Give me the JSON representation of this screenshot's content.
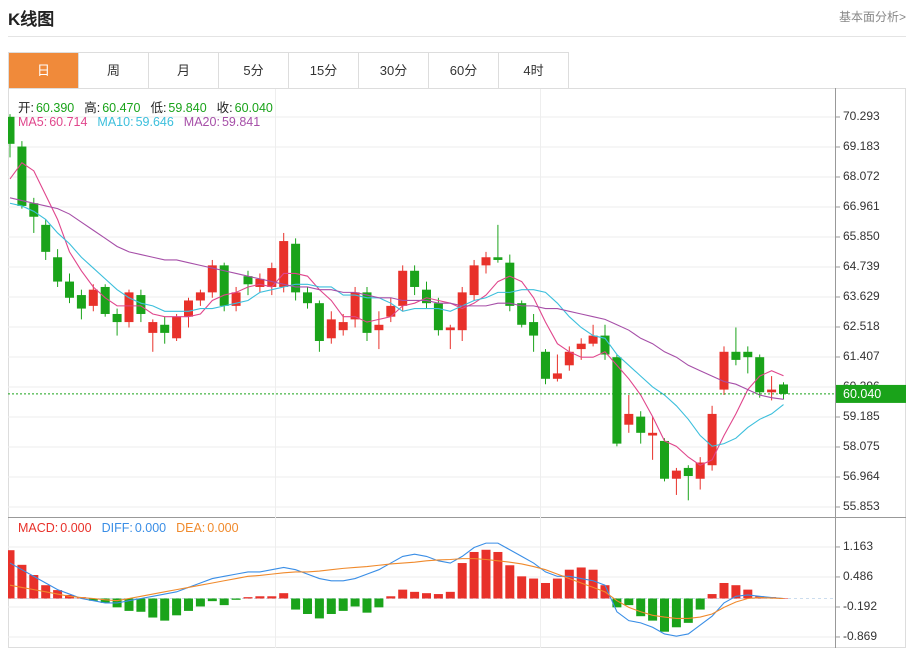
{
  "header": {
    "title": "K线图",
    "link": "基本面分析>"
  },
  "tabs": [
    "日",
    "周",
    "月",
    "5分",
    "15分",
    "30分",
    "60分",
    "4时"
  ],
  "active_tab": 0,
  "chart_data": [
    {
      "type": "candlestick",
      "info": [
        {
          "label": "开:",
          "value": "60.390"
        },
        {
          "label": "高:",
          "value": "60.470"
        },
        {
          "label": "低:",
          "value": "59.840"
        },
        {
          "label": "收:",
          "value": "60.040"
        }
      ],
      "up_color": "#e8312a",
      "down_color": "#1aa31a",
      "candles": {
        "open": [
          70.3,
          69.2,
          67.1,
          66.3,
          65.1,
          64.2,
          63.7,
          63.3,
          64.0,
          63.0,
          62.7,
          63.7,
          62.3,
          62.6,
          62.1,
          62.9,
          63.5,
          63.8,
          64.8,
          63.3,
          64.4,
          64.0,
          64.0,
          64.0,
          65.6,
          63.8,
          63.4,
          62.1,
          62.4,
          62.8,
          63.8,
          62.4,
          62.9,
          63.3,
          64.6,
          63.9,
          63.4,
          62.4,
          62.4,
          63.7,
          64.8,
          65.1,
          64.9,
          63.4,
          62.7,
          61.6,
          60.6,
          61.1,
          61.7,
          61.9,
          62.2,
          61.4,
          58.9,
          59.2,
          58.5,
          58.3,
          56.9,
          57.3,
          56.9,
          57.4,
          60.2,
          61.6,
          61.6,
          61.4,
          60.1,
          60.39
        ],
        "high": [
          70.4,
          69.4,
          67.3,
          66.5,
          65.4,
          64.5,
          63.9,
          64.1,
          64.1,
          63.2,
          63.9,
          63.9,
          62.8,
          62.9,
          63.0,
          63.6,
          63.9,
          65.0,
          64.9,
          64.0,
          64.6,
          64.5,
          64.9,
          66.0,
          65.8,
          64.0,
          63.5,
          63.1,
          63.0,
          64.0,
          64.0,
          63.1,
          63.6,
          64.8,
          64.8,
          64.2,
          63.6,
          62.6,
          64.0,
          65.0,
          65.3,
          66.3,
          65.2,
          63.5,
          63.0,
          61.7,
          61.5,
          61.8,
          62.1,
          62.6,
          62.6,
          61.5,
          60.0,
          59.4,
          59.2,
          58.4,
          57.3,
          57.4,
          57.7,
          59.6,
          61.8,
          62.5,
          61.8,
          61.5,
          60.7,
          60.47
        ],
        "low": [
          68.8,
          66.9,
          66.0,
          65.0,
          64.0,
          63.4,
          62.8,
          63.1,
          62.9,
          62.2,
          62.5,
          62.7,
          61.6,
          61.9,
          62.0,
          62.5,
          63.3,
          63.6,
          63.1,
          63.1,
          63.7,
          63.8,
          63.7,
          63.8,
          63.5,
          63.2,
          61.6,
          61.9,
          62.2,
          62.5,
          62.0,
          61.7,
          62.7,
          63.1,
          63.7,
          63.2,
          62.2,
          61.7,
          62.0,
          63.5,
          64.5,
          64.9,
          63.1,
          62.5,
          61.6,
          60.4,
          60.5,
          60.9,
          61.3,
          61.8,
          61.3,
          58.1,
          58.6,
          58.2,
          57.6,
          56.8,
          56.3,
          56.1,
          56.5,
          57.2,
          60.0,
          61.1,
          60.8,
          59.9,
          59.8,
          59.84
        ],
        "close": [
          69.3,
          67.0,
          66.6,
          65.3,
          64.2,
          63.6,
          63.2,
          63.9,
          63.0,
          62.7,
          63.8,
          63.0,
          62.7,
          62.3,
          62.9,
          63.5,
          63.8,
          64.8,
          63.3,
          63.8,
          64.1,
          64.3,
          64.7,
          65.7,
          63.8,
          63.4,
          62.0,
          62.8,
          62.7,
          63.8,
          62.3,
          62.6,
          63.3,
          64.6,
          64.0,
          63.4,
          62.4,
          62.5,
          63.8,
          64.8,
          65.1,
          65.0,
          63.3,
          62.6,
          62.2,
          60.6,
          60.8,
          61.6,
          61.9,
          62.2,
          61.5,
          58.2,
          59.3,
          58.6,
          58.6,
          56.9,
          57.2,
          57.0,
          57.5,
          59.3,
          61.6,
          61.3,
          61.4,
          60.1,
          60.2,
          60.04
        ]
      },
      "series": [
        {
          "name": "MA5:",
          "value_label": "60.714",
          "color": "#e0468c",
          "values": [
            68.0,
            68.6,
            68.3,
            67.4,
            66.5,
            65.3,
            64.6,
            64.0,
            63.6,
            63.3,
            63.3,
            63.3,
            63.0,
            62.9,
            62.9,
            62.9,
            63.0,
            63.5,
            63.7,
            63.8,
            64.0,
            64.1,
            64.0,
            64.5,
            64.5,
            64.4,
            63.9,
            63.5,
            62.9,
            62.9,
            62.7,
            62.8,
            62.9,
            63.3,
            63.4,
            63.6,
            63.5,
            63.4,
            63.2,
            63.4,
            63.7,
            64.2,
            64.4,
            64.2,
            63.6,
            62.7,
            61.9,
            61.6,
            61.4,
            61.4,
            61.6,
            61.1,
            60.6,
            60.0,
            59.2,
            58.3,
            58.1,
            57.7,
            57.4,
            57.6,
            58.5,
            59.3,
            60.2,
            60.7,
            60.9,
            60.714
          ]
        },
        {
          "name": "MA10:",
          "value_label": "59.646",
          "color": "#3cbfdc",
          "values": [
            67.1,
            67.0,
            66.8,
            66.5,
            66.0,
            65.6,
            65.1,
            64.7,
            64.3,
            63.9,
            63.6,
            63.4,
            63.3,
            63.1,
            63.1,
            63.1,
            63.2,
            63.2,
            63.3,
            63.4,
            63.5,
            63.8,
            63.9,
            64.0,
            64.1,
            64.1,
            64.0,
            64.0,
            63.7,
            63.7,
            63.6,
            63.6,
            63.4,
            63.1,
            63.2,
            63.2,
            63.2,
            63.1,
            63.3,
            63.5,
            63.6,
            63.8,
            63.8,
            63.9,
            63.9,
            63.8,
            63.4,
            62.9,
            62.5,
            62.2,
            62.1,
            61.5,
            61.1,
            60.7,
            60.3,
            60.0,
            59.6,
            59.1,
            58.5,
            58.1,
            58.2,
            58.4,
            58.8,
            59.1,
            59.3,
            59.646
          ]
        },
        {
          "name": "MA20:",
          "value_label": "59.841",
          "color": "#a64fa8",
          "values": [
            67.3,
            67.2,
            67.1,
            67.0,
            66.9,
            66.7,
            66.4,
            66.1,
            65.8,
            65.5,
            65.3,
            65.2,
            65.1,
            65.0,
            65.0,
            64.9,
            64.8,
            64.7,
            64.6,
            64.5,
            64.4,
            64.3,
            64.2,
            64.1,
            64.0,
            64.0,
            63.9,
            63.9,
            63.8,
            63.8,
            63.7,
            63.6,
            63.6,
            63.5,
            63.5,
            63.5,
            63.4,
            63.4,
            63.3,
            63.3,
            63.3,
            63.4,
            63.4,
            63.3,
            63.3,
            63.2,
            63.2,
            63.1,
            63.0,
            62.9,
            62.8,
            62.6,
            62.4,
            62.1,
            61.9,
            61.6,
            61.4,
            61.1,
            60.9,
            60.7,
            60.5,
            60.4,
            60.2,
            60.0,
            59.9,
            59.841
          ]
        }
      ],
      "last_price": {
        "value": 60.04,
        "label": "60.040",
        "color": "#1aa31a"
      },
      "ylim": [
        55.557,
        71.293
      ],
      "yticks": [
        70.293,
        69.183,
        68.072,
        66.961,
        {
          "value": 65.85,
          "label": "65.850"
        },
        64.739,
        63.629,
        62.518,
        61.407,
        60.296,
        59.185,
        58.075,
        56.964,
        55.853
      ],
      "grid": true
    },
    {
      "type": "macd",
      "bars": {
        "name": "MACD:",
        "value_label": "0.000",
        "color": "#e8312a",
        "negative_color": "#1aa31a",
        "values": [
          1.09,
          0.76,
          0.53,
          0.3,
          0.19,
          0.08,
          0.03,
          -0.05,
          -0.1,
          -0.2,
          -0.28,
          -0.3,
          -0.43,
          -0.5,
          -0.38,
          -0.28,
          -0.18,
          -0.06,
          -0.15,
          -0.03,
          0.03,
          0.05,
          0.05,
          0.12,
          -0.25,
          -0.35,
          -0.45,
          -0.35,
          -0.28,
          -0.18,
          -0.32,
          -0.2,
          0.05,
          0.2,
          0.15,
          0.12,
          0.1,
          0.15,
          0.8,
          1.05,
          1.1,
          1.05,
          0.75,
          0.5,
          0.45,
          0.35,
          0.45,
          0.65,
          0.7,
          0.65,
          0.3,
          -0.2,
          -0.15,
          -0.4,
          -0.5,
          -0.75,
          -0.65,
          -0.55,
          -0.25,
          0.1,
          0.35,
          0.3,
          0.2,
          0.05,
          0.03,
          0.0
        ]
      },
      "series": [
        {
          "name": "DIFF:",
          "value_label": "0.000",
          "color": "#3a8ee6",
          "values": [
            0.8,
            0.65,
            0.5,
            0.35,
            0.2,
            0.1,
            0.0,
            -0.05,
            -0.1,
            -0.1,
            -0.05,
            0.0,
            0.05,
            0.1,
            0.15,
            0.25,
            0.35,
            0.45,
            0.5,
            0.55,
            0.6,
            0.6,
            0.65,
            0.7,
            0.65,
            0.55,
            0.45,
            0.4,
            0.4,
            0.45,
            0.55,
            0.65,
            0.8,
            0.95,
            1.0,
            0.95,
            0.85,
            0.8,
            0.95,
            1.15,
            1.25,
            1.25,
            1.1,
            0.95,
            0.8,
            0.6,
            0.5,
            0.5,
            0.45,
            0.4,
            0.3,
            -0.3,
            -0.5,
            -0.55,
            -0.65,
            -0.8,
            -0.85,
            -0.8,
            -0.6,
            -0.4,
            -0.1,
            0.05,
            0.08,
            0.05,
            0.02,
            0.0
          ]
        },
        {
          "name": "DEA:",
          "value_label": "0.000",
          "color": "#f08a2c",
          "values": [
            0.3,
            0.25,
            0.2,
            0.15,
            0.1,
            0.05,
            0.02,
            0.0,
            -0.03,
            -0.05,
            0.0,
            0.05,
            0.1,
            0.15,
            0.2,
            0.25,
            0.3,
            0.35,
            0.4,
            0.45,
            0.5,
            0.52,
            0.55,
            0.58,
            0.6,
            0.6,
            0.62,
            0.65,
            0.68,
            0.7,
            0.72,
            0.75,
            0.78,
            0.8,
            0.82,
            0.85,
            0.87,
            0.88,
            0.9,
            0.9,
            0.88,
            0.85,
            0.82,
            0.78,
            0.72,
            0.65,
            0.55,
            0.45,
            0.35,
            0.25,
            0.15,
            -0.05,
            -0.2,
            -0.3,
            -0.38,
            -0.42,
            -0.45,
            -0.45,
            -0.42,
            -0.35,
            -0.2,
            -0.08,
            0.0,
            0.02,
            0.01,
            0.0
          ]
        }
      ],
      "ylim": [
        -1.05,
        1.817
      ],
      "yticks": [
        1.163,
        0.486,
        -0.192,
        -0.869
      ],
      "grid": true
    }
  ]
}
